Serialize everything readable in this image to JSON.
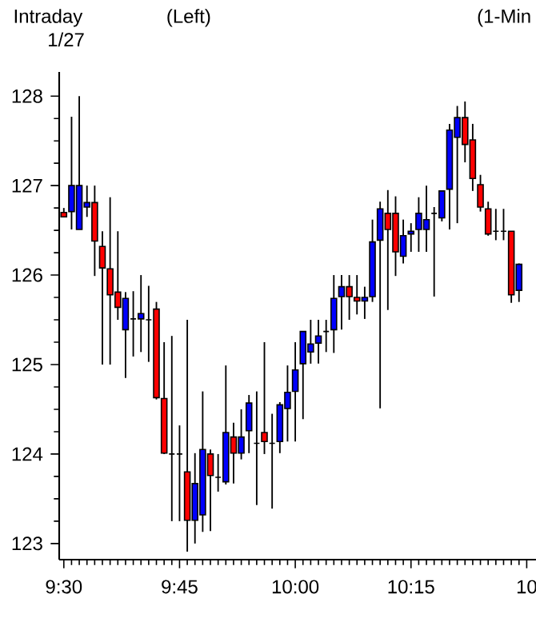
{
  "chart_data": {
    "type": "candlestick",
    "title": "Intraday",
    "subtitle": "1/27",
    "annotations": [
      "(Left)",
      "(1-Min"
    ],
    "x": [
      9.5,
      9.5167,
      9.5333,
      9.55,
      9.5667,
      9.5833,
      9.6,
      9.6167,
      9.6333,
      9.65,
      9.6667,
      9.6833,
      9.7,
      9.7167,
      9.7333,
      9.75,
      9.7667,
      9.7833,
      9.8,
      9.8167,
      9.8333,
      9.85,
      9.8667,
      9.8833,
      9.9,
      9.9167,
      9.9333,
      9.95,
      9.9667,
      9.9833,
      10,
      10.0167,
      10.0333,
      10.05,
      10.0667,
      10.0833,
      10.1,
      10.1167,
      10.1333,
      10.15,
      10.1667,
      10.1833,
      10.2,
      10.2167,
      10.2333,
      10.25,
      10.2667,
      10.2833,
      10.3,
      10.3167,
      10.3333,
      10.35,
      10.3667,
      10.3833,
      10.4,
      10.4167,
      10.4333,
      10.45,
      10.4667,
      10.4833
    ],
    "ohlc": [
      [
        126.7,
        126.75,
        126.65,
        126.65
      ],
      [
        126.71,
        127.77,
        126.51,
        127.0
      ],
      [
        126.51,
        128.0,
        126.51,
        127.0
      ],
      [
        126.76,
        127.0,
        126.65,
        126.81
      ],
      [
        126.81,
        127.0,
        125.99,
        126.38
      ],
      [
        126.32,
        126.49,
        125.0,
        126.08
      ],
      [
        126.07,
        126.87,
        125.0,
        125.78
      ],
      [
        125.81,
        126.49,
        125.5,
        125.64
      ],
      [
        125.39,
        125.81,
        124.85,
        125.74
      ],
      [
        125.51,
        125.82,
        125.09,
        125.51
      ],
      [
        125.51,
        126.0,
        125.14,
        125.57
      ],
      [
        125.5,
        125.88,
        125.03,
        125.5
      ],
      [
        125.62,
        125.7,
        124.61,
        124.63
      ],
      [
        124.62,
        125.25,
        124.0,
        124.01
      ],
      [
        124.0,
        125.32,
        123.25,
        124.0
      ],
      [
        124.0,
        124.32,
        123.25,
        124.0
      ],
      [
        123.8,
        125.5,
        122.91,
        123.26
      ],
      [
        123.26,
        124.01,
        123.0,
        123.67
      ],
      [
        123.32,
        124.7,
        123.13,
        124.05
      ],
      [
        124.0,
        124.05,
        123.14,
        123.76
      ],
      [
        123.74,
        124.0,
        123.58,
        123.74
      ],
      [
        123.69,
        124.99,
        123.66,
        124.24
      ],
      [
        124.19,
        124.35,
        123.67,
        124.01
      ],
      [
        124.01,
        124.5,
        123.94,
        124.19
      ],
      [
        124.26,
        124.66,
        124.01,
        124.57
      ],
      [
        124.12,
        124.7,
        123.43,
        124.12
      ],
      [
        124.24,
        125.25,
        124.0,
        124.14
      ],
      [
        124.12,
        124.45,
        123.39,
        124.12
      ],
      [
        124.14,
        124.58,
        124.01,
        124.55
      ],
      [
        124.51,
        124.99,
        124.14,
        124.69
      ],
      [
        124.7,
        125.25,
        124.14,
        124.94
      ],
      [
        125.01,
        125.37,
        124.39,
        125.37
      ],
      [
        125.14,
        125.5,
        125.01,
        125.23
      ],
      [
        125.24,
        125.5,
        125.01,
        125.32
      ],
      [
        125.37,
        125.5,
        125.14,
        125.37
      ],
      [
        125.39,
        126.0,
        125.13,
        125.74
      ],
      [
        125.76,
        126.0,
        125.39,
        125.87
      ],
      [
        125.87,
        126.0,
        125.5,
        125.76
      ],
      [
        125.75,
        126.0,
        125.56,
        125.71
      ],
      [
        125.71,
        125.87,
        125.51,
        125.75
      ],
      [
        125.76,
        126.62,
        125.7,
        126.37
      ],
      [
        126.39,
        126.82,
        124.51,
        126.74
      ],
      [
        126.69,
        126.95,
        125.61,
        126.51
      ],
      [
        126.69,
        126.88,
        125.99,
        126.26
      ],
      [
        126.21,
        126.62,
        126.13,
        126.44
      ],
      [
        126.46,
        126.58,
        126.26,
        126.49
      ],
      [
        126.51,
        126.87,
        126.26,
        126.69
      ],
      [
        126.51,
        127.0,
        126.26,
        126.62
      ],
      [
        126.69,
        126.76,
        125.76,
        126.69
      ],
      [
        126.64,
        126.94,
        126.6,
        126.94
      ],
      [
        126.96,
        127.69,
        126.51,
        127.62
      ],
      [
        127.54,
        127.89,
        126.58,
        127.76
      ],
      [
        127.76,
        127.94,
        127.26,
        127.46
      ],
      [
        127.51,
        127.69,
        126.94,
        127.08
      ],
      [
        127.01,
        127.12,
        126.71,
        126.76
      ],
      [
        126.74,
        126.82,
        126.44,
        126.46
      ],
      [
        126.49,
        126.74,
        126.39,
        126.49
      ],
      [
        126.49,
        126.74,
        126.39,
        126.49
      ],
      [
        126.49,
        126.49,
        125.69,
        125.78
      ],
      [
        125.83,
        126.13,
        125.7,
        126.12
      ]
    ],
    "colors": [
      "#ff0000",
      "#0000ff",
      "#0000ff",
      "#0000ff",
      "#ff0000",
      "#ff0000",
      "#ff0000",
      "#ff0000",
      "#0000ff",
      "#000000",
      "#0000ff",
      "#000000",
      "#ff0000",
      "#ff0000",
      "#000000",
      "#000000",
      "#ff0000",
      "#0000ff",
      "#0000ff",
      "#ff0000",
      "#000000",
      "#0000ff",
      "#ff0000",
      "#0000ff",
      "#0000ff",
      "#000000",
      "#ff0000",
      "#000000",
      "#0000ff",
      "#0000ff",
      "#0000ff",
      "#0000ff",
      "#0000ff",
      "#0000ff",
      "#000000",
      "#0000ff",
      "#0000ff",
      "#ff0000",
      "#ff0000",
      "#0000ff",
      "#0000ff",
      "#0000ff",
      "#ff0000",
      "#ff0000",
      "#0000ff",
      "#0000ff",
      "#0000ff",
      "#0000ff",
      "#000000",
      "#0000ff",
      "#0000ff",
      "#0000ff",
      "#ff0000",
      "#ff0000",
      "#ff0000",
      "#ff0000",
      "#000000",
      "#000000",
      "#ff0000",
      "#0000ff"
    ],
    "xlim": [
      9.49,
      10.52
    ],
    "xticks": [
      {
        "value": 9.5,
        "label": "9:30"
      },
      {
        "value": 9.75,
        "label": "9:45"
      },
      {
        "value": 10,
        "label": "10:00"
      },
      {
        "value": 10.25,
        "label": "10:15"
      },
      {
        "value": 10.5,
        "label": "10"
      }
    ],
    "ylim": [
      122.82,
      128.27
    ],
    "yticks": [
      123,
      124,
      125,
      126,
      127,
      128
    ]
  }
}
